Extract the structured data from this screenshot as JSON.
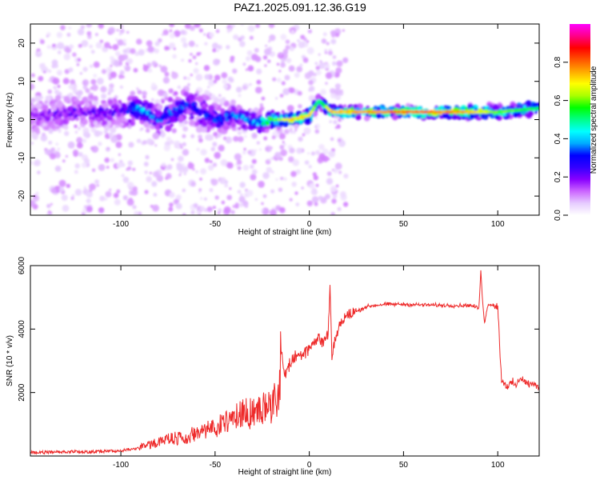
{
  "figure": {
    "title": "PAZ1.2025.091.12.36.G19"
  },
  "chart_data": [
    {
      "type": "heatmap",
      "xlabel": "Height of straight line (km)",
      "ylabel": "Frequency (Hz)",
      "xlim": [
        -148,
        122
      ],
      "ylim": [
        -25,
        25
      ],
      "xticks": [
        -100,
        -50,
        0,
        50,
        100
      ],
      "yticks": [
        -20,
        -10,
        0,
        10,
        20
      ],
      "grid": false,
      "colorbar": {
        "label": "Normalized spectral amplitude",
        "range": [
          0,
          1
        ],
        "ticks": [
          0.0,
          0.2,
          0.4,
          0.6,
          0.8
        ],
        "colors": [
          "#ffffff",
          "#e6ccff",
          "#cc66ff",
          "#8800ff",
          "#3300ff",
          "#0000ff",
          "#00aaff",
          "#00ffff",
          "#00ff88",
          "#00ff00",
          "#aaff00",
          "#ffff00",
          "#ffaa00",
          "#ff5500",
          "#ff0000",
          "#ff0088",
          "#ff00ff"
        ]
      },
      "ridge": [
        {
          "x": -148,
          "y": 1,
          "amp": 0.18,
          "spread": 5
        },
        {
          "x": -120,
          "y": 2,
          "amp": 0.2,
          "spread": 5
        },
        {
          "x": -100,
          "y": 2,
          "amp": 0.22,
          "spread": 5
        },
        {
          "x": -90,
          "y": 3,
          "amp": 0.38,
          "spread": 4
        },
        {
          "x": -80,
          "y": 0,
          "amp": 0.32,
          "spread": 4
        },
        {
          "x": -65,
          "y": 4,
          "amp": 0.3,
          "spread": 5
        },
        {
          "x": -50,
          "y": 0,
          "amp": 0.3,
          "spread": 4
        },
        {
          "x": -38,
          "y": 1,
          "amp": 0.34,
          "spread": 3
        },
        {
          "x": -30,
          "y": -1,
          "amp": 0.36,
          "spread": 3
        },
        {
          "x": -20,
          "y": 0,
          "amp": 0.55,
          "spread": 2
        },
        {
          "x": -10,
          "y": 0,
          "amp": 0.72,
          "spread": 1.5
        },
        {
          "x": 0,
          "y": 1,
          "amp": 0.72,
          "spread": 1.5
        },
        {
          "x": 5,
          "y": 5,
          "amp": 0.5,
          "spread": 1.5
        },
        {
          "x": 12,
          "y": 2,
          "amp": 0.72,
          "spread": 1.2
        },
        {
          "x": 30,
          "y": 2,
          "amp": 0.78,
          "spread": 1.2
        },
        {
          "x": 60,
          "y": 2,
          "amp": 0.82,
          "spread": 1.2
        },
        {
          "x": 85,
          "y": 2,
          "amp": 0.75,
          "spread": 1.4
        },
        {
          "x": 100,
          "y": 2,
          "amp": 0.6,
          "spread": 1.6
        },
        {
          "x": 122,
          "y": 3,
          "amp": 0.55,
          "spread": 1.6
        }
      ]
    },
    {
      "type": "line",
      "xlabel": "Height of straight line (km)",
      "ylabel": "SNR (10 * v/v)",
      "xlim": [
        -148,
        122
      ],
      "ylim": [
        0,
        6000
      ],
      "xticks": [
        -100,
        -50,
        0,
        50,
        100
      ],
      "yticks": [
        2000,
        4000,
        6000
      ],
      "grid": false,
      "series": [
        {
          "color": "#ee2a2a",
          "x": [
            -148,
            -140,
            -130,
            -120,
            -110,
            -100,
            -90,
            -85,
            -80,
            -75,
            -70,
            -65,
            -60,
            -55,
            -50,
            -45,
            -40,
            -35,
            -30,
            -25,
            -20,
            -16,
            -15,
            -13,
            -10,
            -8,
            -5,
            -2,
            0,
            3,
            5,
            8,
            10,
            11,
            12,
            15,
            18,
            20,
            25,
            30,
            35,
            40,
            50,
            60,
            70,
            80,
            85,
            88,
            90,
            91,
            92,
            93,
            95,
            98,
            100,
            102,
            105,
            108,
            110,
            112,
            115,
            118,
            122
          ],
          "y": [
            100,
            100,
            120,
            110,
            130,
            150,
            250,
            300,
            380,
            450,
            500,
            560,
            600,
            680,
            780,
            900,
            1050,
            1150,
            1250,
            1350,
            1450,
            1550,
            3300,
            2600,
            2900,
            3100,
            3200,
            3350,
            3450,
            3600,
            3700,
            3600,
            3900,
            5300,
            3200,
            4000,
            4300,
            4400,
            4550,
            4700,
            4750,
            4780,
            4780,
            4760,
            4750,
            4740,
            4750,
            4700,
            4650,
            5800,
            4900,
            4200,
            4800,
            4750,
            4700,
            2400,
            2200,
            2300,
            2200,
            2500,
            2300,
            2250,
            2200
          ]
        }
      ]
    }
  ]
}
